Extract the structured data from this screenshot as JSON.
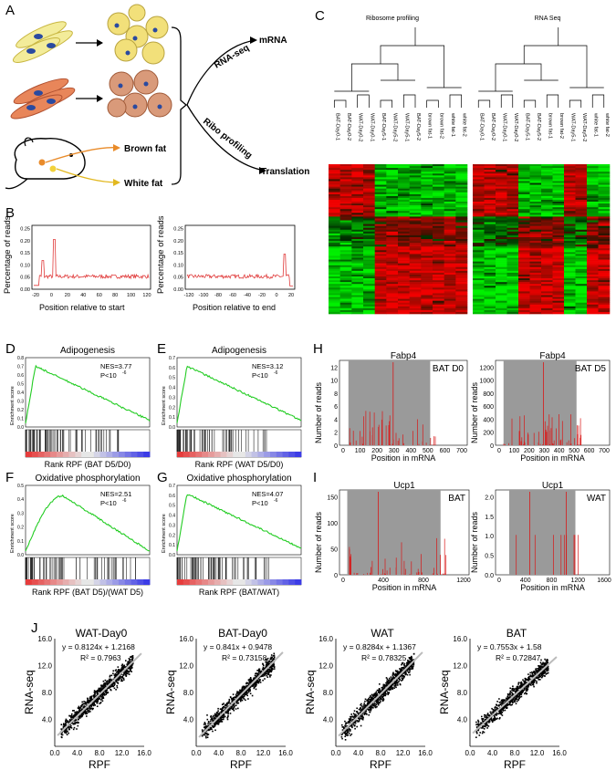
{
  "panels": {
    "A": "A",
    "B": "B",
    "C": "C",
    "D": "D",
    "E": "E",
    "F": "F",
    "G": "G",
    "H": "H",
    "I": "I",
    "J": "J"
  },
  "panel_a": {
    "rna_seq": "RNA-seq",
    "mrna": "mRNA",
    "ribo": "Ribo profiling",
    "translation": "Translation",
    "brown_fat": "Brown fat",
    "white_fat": "White fat"
  },
  "panel_b": {
    "ylabel": "Percentage of reads",
    "left": {
      "xlabel": "Position relative to start",
      "xticks": [
        "-20",
        "0",
        "20",
        "40",
        "60",
        "80",
        "100",
        "120"
      ],
      "yticks": [
        "0.00",
        "0.05",
        "0.10",
        "0.15",
        "0.20",
        "0.25"
      ]
    },
    "right": {
      "xlabel": "Position relative to end",
      "xticks": [
        "-120",
        "-100",
        "-80",
        "-60",
        "-40",
        "-20",
        "0",
        "20"
      ],
      "yticks": [
        "0.00",
        "0.05",
        "0.10",
        "0.15",
        "0.20",
        "0.25"
      ]
    }
  },
  "panel_c": {
    "left_title": "Ribosome profiling",
    "right_title": "RNA Seq",
    "left_samples": [
      "BAT-Day0-1",
      "BAT-Day0-2",
      "WAT-Day0-2",
      "WAT-Day0-1",
      "BAT-Day5-1",
      "WAT-Day5-2",
      "WAT-Day5-1",
      "BAT-Day5-2",
      "brown fat-1",
      "brown fat-2",
      "white fat-1",
      "white fat-2"
    ],
    "right_samples": [
      "BAT-Day0-1",
      "BAT-Day0-2",
      "WAT-Day0-1",
      "WAT-Day0-2",
      "BAT-Day5-1",
      "BAT-Day5-2",
      "brown fat-1",
      "brown fat-2",
      "WAT-Day5-1",
      "WAT-Day5-2",
      "white fat-1",
      "white fat-2"
    ]
  },
  "gsea": [
    {
      "title": "Adipogenesis",
      "nes": "NES=3.77",
      "p": "P<10",
      "pexp": "-6",
      "xlabel": "Rank RPF (BAT D5/D0)",
      "ylabel": "Enrichment score",
      "yticks": [
        "0.0",
        "0.1",
        "0.2",
        "0.3",
        "0.4",
        "0.5",
        "0.6",
        "0.7",
        "0.8"
      ]
    },
    {
      "title": "Adipogenesis",
      "nes": "NES=3.12",
      "p": "P<10",
      "pexp": "-6",
      "xlabel": "Rank RPF (WAT D5/D0)",
      "ylabel": "Enrichment score",
      "yticks": [
        "0.0",
        "0.1",
        "0.2",
        "0.3",
        "0.4",
        "0.5",
        "0.6",
        "0.7"
      ]
    },
    {
      "title": "Oxidative phosphorylation",
      "nes": "NES=2.51",
      "p": "P<10",
      "pexp": "-6",
      "xlabel": "Rank RPF (BAT D5)/(WAT D5)",
      "ylabel": "Enrichment score",
      "yticks": [
        "0.0",
        "0.1",
        "0.2",
        "0.3",
        "0.4",
        "0.5"
      ]
    },
    {
      "title": "Oxidative phosphorylation",
      "nes": "NES=4.07",
      "p": "P<10",
      "pexp": "-6",
      "xlabel": "Rank RPF (BAT/WAT)",
      "ylabel": "Enrichment score",
      "yticks": [
        "0.0",
        "0.1",
        "0.2",
        "0.3",
        "0.4",
        "0.5",
        "0.6",
        "0.7"
      ]
    }
  ],
  "reads": [
    {
      "gene": "Fabp4",
      "tag": "BAT D0",
      "ylabel": "Number of reads",
      "xlabel": "Position in mRNA",
      "yticks": [
        "0",
        "2",
        "4",
        "6",
        "8",
        "10",
        "12"
      ],
      "xticks": [
        "0",
        "100",
        "200",
        "300",
        "400",
        "500",
        "600",
        "700"
      ]
    },
    {
      "gene": "Fabp4",
      "tag": "BAT D5",
      "ylabel": "Number of reads",
      "xlabel": "Position in mRNA",
      "yticks": [
        "0",
        "200",
        "400",
        "600",
        "800",
        "1000",
        "1200"
      ],
      "xticks": [
        "0",
        "100",
        "200",
        "300",
        "400",
        "500",
        "600",
        "700"
      ]
    },
    {
      "gene": "Ucp1",
      "tag": "BAT",
      "ylabel": "Number of reads",
      "xlabel": "Position in mRNA",
      "yticks": [
        "0",
        "50",
        "100",
        "150"
      ],
      "xticks": [
        "0",
        "400",
        "800",
        "1200"
      ]
    },
    {
      "gene": "Ucp1",
      "tag": "WAT",
      "ylabel": "Number of reads",
      "xlabel": "Position in mRNA",
      "yticks": [
        "0.0",
        "0.5",
        "1.0",
        "1.5",
        "2.0"
      ],
      "xticks": [
        "0",
        "400",
        "800",
        "1200",
        "1600"
      ]
    }
  ],
  "chart_data": [
    {
      "type": "scatter",
      "title": "WAT-Day0",
      "equation": "y = 0.8124x + 1.2168",
      "r2": "R² = 0.7963",
      "xlabel": "RPF",
      "ylabel": "RNA-seq",
      "slope": 0.8124,
      "intercept": 1.2168,
      "xlim": [
        0,
        16
      ],
      "ylim": [
        0,
        16
      ],
      "xticks": [
        "0.0",
        "4.0",
        "8.0",
        "12.0",
        "16.0"
      ],
      "yticks": [
        "4.0",
        "8.0",
        "12.0",
        "16.0"
      ]
    },
    {
      "type": "scatter",
      "title": "BAT-Day0",
      "equation": "y = 0.841x + 0.9478",
      "r2": "R² = 0.73158",
      "xlabel": "RPF",
      "ylabel": "RNA-seq",
      "slope": 0.841,
      "intercept": 0.9478,
      "xlim": [
        0,
        16
      ],
      "ylim": [
        0,
        16
      ],
      "xticks": [
        "0.0",
        "4.0",
        "8.0",
        "12.0",
        "16.0"
      ],
      "yticks": [
        "4.0",
        "8.0",
        "12.0",
        "16.0"
      ]
    },
    {
      "type": "scatter",
      "title": "WAT",
      "equation": "y = 0.8284x + 1.1367",
      "r2": "R² = 0.78325",
      "xlabel": "RPF",
      "ylabel": "RNA-seq",
      "slope": 0.8284,
      "intercept": 1.1367,
      "xlim": [
        0,
        16
      ],
      "ylim": [
        0,
        16
      ],
      "xticks": [
        "0.0",
        "4.0",
        "8.0",
        "12.0",
        "16.0"
      ],
      "yticks": [
        "4.0",
        "8.0",
        "12.0",
        "16.0"
      ]
    },
    {
      "type": "scatter",
      "title": "BAT",
      "equation": "y = 0.7553x + 1.58",
      "r2": "R² = 0.72847",
      "xlabel": "RPF",
      "ylabel": "RNA-seq",
      "slope": 0.7553,
      "intercept": 1.58,
      "xlim": [
        0,
        16
      ],
      "ylim": [
        0,
        16
      ],
      "xticks": [
        "0.0",
        "4.0",
        "8.0",
        "12.0",
        "16.0"
      ],
      "yticks": [
        "4.0",
        "8.0",
        "12.0",
        "16.0"
      ]
    }
  ],
  "colors": {
    "trace": "#e03a3a",
    "gsea": "#22cc22",
    "shade": "#9a9a9a",
    "reads": "#d81818"
  }
}
